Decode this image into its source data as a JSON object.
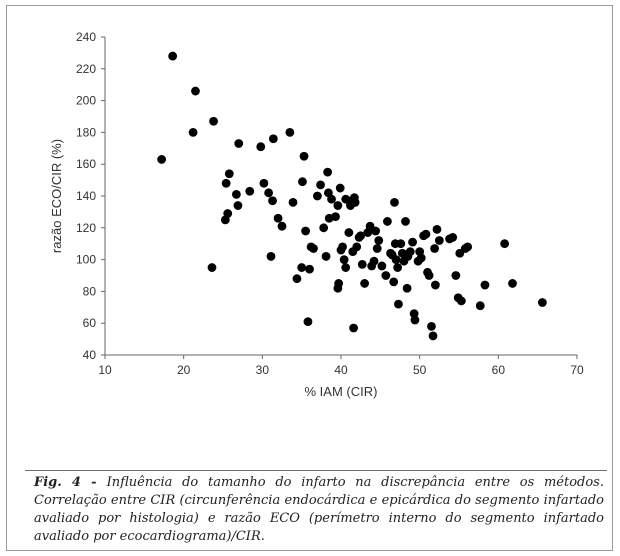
{
  "chart_data": {
    "type": "scatter",
    "xlabel": "% IAM (CIR)",
    "ylabel": "razão ECO/CIR (%)",
    "xlim": [
      10,
      70
    ],
    "ylim": [
      40,
      240
    ],
    "xticks": [
      10,
      20,
      30,
      40,
      50,
      60,
      70
    ],
    "yticks": [
      40,
      60,
      80,
      100,
      120,
      140,
      160,
      180,
      200,
      220,
      240
    ],
    "grid": false,
    "marker_color": "#000000",
    "points": [
      [
        17.2,
        163
      ],
      [
        18.6,
        228
      ],
      [
        21.2,
        180
      ],
      [
        21.5,
        206
      ],
      [
        23.6,
        95
      ],
      [
        23.8,
        187
      ],
      [
        25.3,
        125
      ],
      [
        25.6,
        129
      ],
      [
        25.4,
        148
      ],
      [
        25.8,
        154
      ],
      [
        26.7,
        141
      ],
      [
        26.9,
        134
      ],
      [
        27.0,
        173
      ],
      [
        28.4,
        143
      ],
      [
        29.8,
        171
      ],
      [
        30.2,
        148
      ],
      [
        30.8,
        142
      ],
      [
        31.1,
        102
      ],
      [
        31.3,
        137
      ],
      [
        31.4,
        176
      ],
      [
        32.0,
        126
      ],
      [
        32.5,
        121
      ],
      [
        33.5,
        180
      ],
      [
        33.9,
        136
      ],
      [
        34.4,
        88
      ],
      [
        35.0,
        95
      ],
      [
        35.1,
        149
      ],
      [
        35.3,
        165
      ],
      [
        35.5,
        118
      ],
      [
        35.8,
        61
      ],
      [
        36.0,
        94
      ],
      [
        36.2,
        108
      ],
      [
        36.5,
        107
      ],
      [
        37.0,
        140
      ],
      [
        37.4,
        147
      ],
      [
        37.8,
        120
      ],
      [
        38.1,
        102
      ],
      [
        38.3,
        155
      ],
      [
        38.4,
        142
      ],
      [
        38.5,
        126
      ],
      [
        38.8,
        138
      ],
      [
        39.3,
        127
      ],
      [
        39.6,
        82
      ],
      [
        39.6,
        134
      ],
      [
        39.7,
        85
      ],
      [
        39.9,
        145
      ],
      [
        40.0,
        106
      ],
      [
        40.2,
        108
      ],
      [
        40.4,
        100
      ],
      [
        40.6,
        138
      ],
      [
        40.6,
        95
      ],
      [
        41.0,
        117
      ],
      [
        41.2,
        134
      ],
      [
        41.3,
        137
      ],
      [
        41.5,
        105
      ],
      [
        41.6,
        57
      ],
      [
        41.7,
        139
      ],
      [
        41.8,
        136
      ],
      [
        42.0,
        108
      ],
      [
        42.3,
        114
      ],
      [
        42.5,
        115
      ],
      [
        42.7,
        97
      ],
      [
        43.0,
        85
      ],
      [
        43.4,
        117
      ],
      [
        43.7,
        121
      ],
      [
        43.9,
        96
      ],
      [
        44.2,
        99
      ],
      [
        44.4,
        118
      ],
      [
        44.6,
        107
      ],
      [
        44.8,
        112
      ],
      [
        45.2,
        96
      ],
      [
        45.7,
        90
      ],
      [
        45.9,
        124
      ],
      [
        46.3,
        104
      ],
      [
        46.5,
        103
      ],
      [
        46.7,
        86
      ],
      [
        46.8,
        136
      ],
      [
        46.9,
        110
      ],
      [
        47.0,
        100
      ],
      [
        47.2,
        95
      ],
      [
        47.3,
        72
      ],
      [
        47.6,
        110
      ],
      [
        47.8,
        104
      ],
      [
        48.0,
        99
      ],
      [
        48.2,
        124
      ],
      [
        48.4,
        82
      ],
      [
        48.5,
        102
      ],
      [
        48.8,
        105
      ],
      [
        49.1,
        111
      ],
      [
        49.3,
        66
      ],
      [
        49.4,
        62
      ],
      [
        49.8,
        99
      ],
      [
        50.0,
        105
      ],
      [
        50.2,
        101
      ],
      [
        50.5,
        115
      ],
      [
        50.8,
        116
      ],
      [
        51.0,
        92
      ],
      [
        51.2,
        90
      ],
      [
        51.5,
        58
      ],
      [
        51.7,
        52
      ],
      [
        51.9,
        107
      ],
      [
        52.0,
        84
      ],
      [
        52.2,
        119
      ],
      [
        52.5,
        112
      ],
      [
        53.8,
        113
      ],
      [
        54.2,
        114
      ],
      [
        54.6,
        90
      ],
      [
        54.9,
        76
      ],
      [
        55.1,
        104
      ],
      [
        55.3,
        74
      ],
      [
        55.8,
        107
      ],
      [
        56.1,
        108
      ],
      [
        57.7,
        71
      ],
      [
        58.3,
        84
      ],
      [
        60.8,
        110
      ],
      [
        61.8,
        85
      ],
      [
        65.6,
        73
      ]
    ]
  },
  "caption": {
    "label": "Fig. 4 - ",
    "text": "Influência do tamanho do infarto na discrepância entre os métodos. Correlação entre CIR (circunferência endocárdica e epicárdica do segmento infartado avaliado por histologia) e razão ECO (perímetro interno do segmento infartado avaliado por ecocardiograma)/CIR."
  }
}
